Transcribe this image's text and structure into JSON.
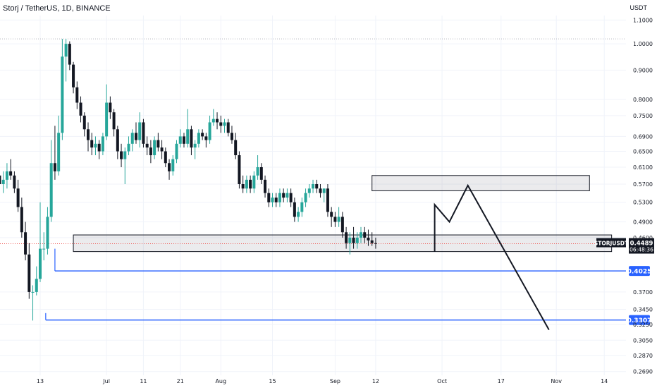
{
  "chart_data": {
    "type": "candlestick",
    "title": "Storj / TetherUS, 1D, BINANCE",
    "currency": "USDT",
    "y_scale": "log",
    "ylim": [
      0.265,
      1.12
    ],
    "y_ticks": [
      "1.1000",
      "1.0000",
      "0.9000",
      "0.8000",
      "0.7500",
      "0.6900",
      "0.6500",
      "0.6100",
      "0.5700",
      "0.5300",
      "0.4900",
      "0.4600",
      "0.3700",
      "0.3450",
      "0.3250",
      "0.3050",
      "0.2870",
      "0.2690"
    ],
    "x_ticks": [
      {
        "label": "13",
        "day": 0
      },
      {
        "label": "Jul",
        "day": 18
      },
      {
        "label": "11",
        "day": 28
      },
      {
        "label": "21",
        "day": 38
      },
      {
        "label": "Aug",
        "day": 49
      },
      {
        "label": "15",
        "day": 63
      },
      {
        "label": "Sep",
        "day": 80
      },
      {
        "label": "12",
        "day": 91
      },
      {
        "label": "Oct",
        "day": 109
      },
      {
        "label": "17",
        "day": 125
      },
      {
        "label": "Nov",
        "day": 140
      },
      {
        "label": "14",
        "day": 153
      }
    ],
    "candles": [
      [
        0.59,
        0.62,
        0.56,
        0.57
      ],
      [
        0.57,
        0.6,
        0.55,
        0.58
      ],
      [
        0.58,
        0.62,
        0.56,
        0.6
      ],
      [
        0.6,
        0.63,
        0.58,
        0.59
      ],
      [
        0.59,
        0.6,
        0.55,
        0.56
      ],
      [
        0.56,
        0.58,
        0.51,
        0.52
      ],
      [
        0.52,
        0.54,
        0.46,
        0.47
      ],
      [
        0.47,
        0.49,
        0.42,
        0.43
      ],
      [
        0.43,
        0.45,
        0.36,
        0.37
      ],
      [
        0.37,
        0.38,
        0.33,
        0.37
      ],
      [
        0.37,
        0.41,
        0.365,
        0.39
      ],
      [
        0.39,
        0.53,
        0.385,
        0.44
      ],
      [
        0.44,
        0.47,
        0.42,
        0.44
      ],
      [
        0.44,
        0.52,
        0.43,
        0.5
      ],
      [
        0.5,
        0.68,
        0.49,
        0.62
      ],
      [
        0.62,
        0.72,
        0.58,
        0.6
      ],
      [
        0.6,
        0.75,
        0.59,
        0.7
      ],
      [
        0.7,
        1.02,
        0.68,
        0.95
      ],
      [
        0.95,
        1.02,
        0.86,
        1.0
      ],
      [
        1.0,
        1.01,
        0.9,
        0.92
      ],
      [
        0.92,
        0.93,
        0.82,
        0.84
      ],
      [
        0.84,
        0.86,
        0.77,
        0.79
      ],
      [
        0.79,
        0.81,
        0.73,
        0.75
      ],
      [
        0.75,
        0.76,
        0.69,
        0.71
      ],
      [
        0.71,
        0.73,
        0.65,
        0.68
      ],
      [
        0.68,
        0.7,
        0.64,
        0.66
      ],
      [
        0.66,
        0.69,
        0.64,
        0.67
      ],
      [
        0.67,
        0.68,
        0.63,
        0.65
      ],
      [
        0.65,
        0.7,
        0.64,
        0.69
      ],
      [
        0.69,
        0.85,
        0.68,
        0.79
      ],
      [
        0.79,
        0.81,
        0.74,
        0.76
      ],
      [
        0.76,
        0.77,
        0.69,
        0.71
      ],
      [
        0.71,
        0.72,
        0.63,
        0.65
      ],
      [
        0.65,
        0.67,
        0.61,
        0.63
      ],
      [
        0.63,
        0.66,
        0.57,
        0.65
      ],
      [
        0.65,
        0.69,
        0.64,
        0.67
      ],
      [
        0.67,
        0.71,
        0.65,
        0.7
      ],
      [
        0.7,
        0.73,
        0.67,
        0.68
      ],
      [
        0.68,
        0.76,
        0.66,
        0.73
      ],
      [
        0.73,
        0.74,
        0.66,
        0.67
      ],
      [
        0.67,
        0.69,
        0.64,
        0.66
      ],
      [
        0.66,
        0.68,
        0.62,
        0.64
      ],
      [
        0.64,
        0.69,
        0.63,
        0.68
      ],
      [
        0.68,
        0.7,
        0.65,
        0.66
      ],
      [
        0.66,
        0.68,
        0.63,
        0.65
      ],
      [
        0.65,
        0.66,
        0.61,
        0.62
      ],
      [
        0.62,
        0.63,
        0.58,
        0.6
      ],
      [
        0.6,
        0.64,
        0.59,
        0.63
      ],
      [
        0.63,
        0.68,
        0.62,
        0.67
      ],
      [
        0.67,
        0.71,
        0.66,
        0.69
      ],
      [
        0.69,
        0.7,
        0.66,
        0.67
      ],
      [
        0.67,
        0.77,
        0.66,
        0.71
      ],
      [
        0.71,
        0.72,
        0.64,
        0.66
      ],
      [
        0.66,
        0.68,
        0.63,
        0.67
      ],
      [
        0.67,
        0.71,
        0.66,
        0.7
      ],
      [
        0.7,
        0.71,
        0.68,
        0.69
      ],
      [
        0.69,
        0.7,
        0.66,
        0.68
      ],
      [
        0.68,
        0.75,
        0.67,
        0.73
      ],
      [
        0.73,
        0.77,
        0.72,
        0.74
      ],
      [
        0.74,
        0.76,
        0.71,
        0.73
      ],
      [
        0.73,
        0.75,
        0.7,
        0.72
      ],
      [
        0.72,
        0.74,
        0.7,
        0.73
      ],
      [
        0.73,
        0.74,
        0.69,
        0.7
      ],
      [
        0.7,
        0.72,
        0.67,
        0.68
      ],
      [
        0.68,
        0.7,
        0.63,
        0.64
      ],
      [
        0.64,
        0.65,
        0.56,
        0.57
      ],
      [
        0.57,
        0.59,
        0.55,
        0.56
      ],
      [
        0.56,
        0.59,
        0.55,
        0.58
      ],
      [
        0.58,
        0.59,
        0.55,
        0.56
      ],
      [
        0.56,
        0.6,
        0.55,
        0.59
      ],
      [
        0.59,
        0.64,
        0.58,
        0.61
      ],
      [
        0.61,
        0.62,
        0.57,
        0.58
      ],
      [
        0.58,
        0.59,
        0.54,
        0.55
      ],
      [
        0.55,
        0.56,
        0.52,
        0.53
      ],
      [
        0.53,
        0.55,
        0.52,
        0.54
      ],
      [
        0.54,
        0.55,
        0.52,
        0.53
      ],
      [
        0.53,
        0.56,
        0.52,
        0.55
      ],
      [
        0.55,
        0.56,
        0.53,
        0.54
      ],
      [
        0.54,
        0.56,
        0.53,
        0.55
      ],
      [
        0.55,
        0.56,
        0.52,
        0.53
      ],
      [
        0.53,
        0.54,
        0.49,
        0.5
      ],
      [
        0.5,
        0.52,
        0.49,
        0.51
      ],
      [
        0.51,
        0.54,
        0.5,
        0.53
      ],
      [
        0.53,
        0.56,
        0.52,
        0.55
      ],
      [
        0.55,
        0.57,
        0.54,
        0.56
      ],
      [
        0.56,
        0.58,
        0.55,
        0.57
      ],
      [
        0.57,
        0.58,
        0.55,
        0.56
      ],
      [
        0.56,
        0.57,
        0.54,
        0.55
      ],
      [
        0.55,
        0.56,
        0.53,
        0.56
      ],
      [
        0.56,
        0.57,
        0.5,
        0.51
      ],
      [
        0.51,
        0.52,
        0.48,
        0.5
      ],
      [
        0.5,
        0.51,
        0.48,
        0.49
      ],
      [
        0.49,
        0.52,
        0.48,
        0.5
      ],
      [
        0.5,
        0.51,
        0.46,
        0.47
      ],
      [
        0.47,
        0.48,
        0.44,
        0.45
      ],
      [
        0.45,
        0.47,
        0.43,
        0.46
      ],
      [
        0.46,
        0.48,
        0.44,
        0.45
      ],
      [
        0.45,
        0.47,
        0.44,
        0.46
      ],
      [
        0.46,
        0.48,
        0.45,
        0.47
      ],
      [
        0.47,
        0.48,
        0.45,
        0.46
      ],
      [
        0.46,
        0.475,
        0.445,
        0.455
      ],
      [
        0.455,
        0.47,
        0.445,
        0.45
      ],
      [
        0.45,
        0.46,
        0.44,
        0.449
      ]
    ],
    "horizontal_levels": [
      {
        "price": 0.4025,
        "label": "0.4025",
        "color": "#2962ff"
      },
      {
        "price": 0.3307,
        "label": "0.3307",
        "color": "#2962ff"
      }
    ],
    "zones": [
      {
        "from_day": 90,
        "to_day": 149,
        "top": 0.59,
        "bottom": 0.555
      },
      {
        "from_day": 9,
        "to_day": 155,
        "top": 0.465,
        "bottom": 0.435
      }
    ],
    "projection": [
      [
        107,
        0.435
      ],
      [
        107,
        0.525
      ],
      [
        111,
        0.49
      ],
      [
        116,
        0.567
      ],
      [
        138,
        0.318
      ]
    ],
    "current": {
      "symbol": "STORJUSDT",
      "price": "0.4489",
      "countdown": "06:48:36",
      "price_value": 0.4489
    },
    "colors": {
      "up": "#26a69a",
      "down": "#131722",
      "grid": "#f0f3fa",
      "axis_text": "#131722",
      "level": "#2962ff",
      "last_line": "#ef5350"
    }
  }
}
